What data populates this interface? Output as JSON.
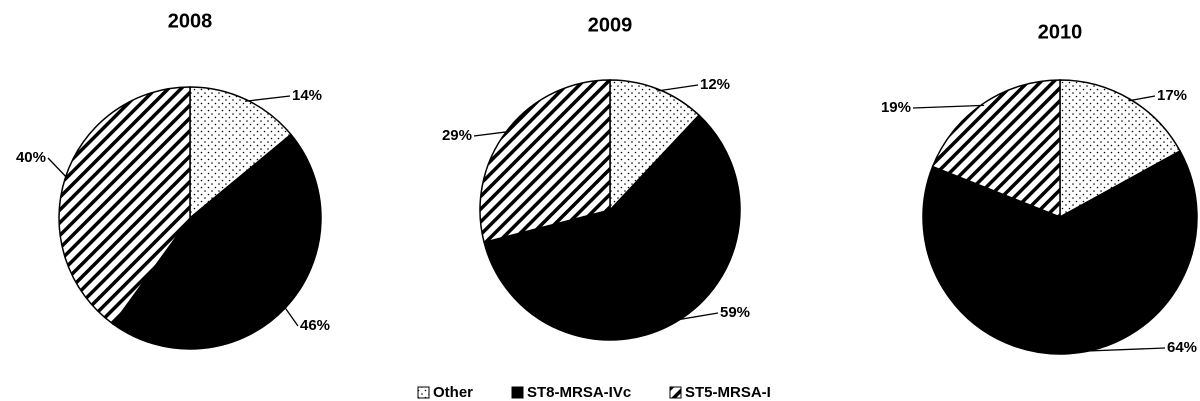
{
  "chart_data": [
    {
      "type": "pie",
      "title": "2008",
      "categories": [
        "Other",
        "ST8-MRSA-IVc",
        "ST5-MRSA-I"
      ],
      "values": [
        14,
        46,
        40
      ],
      "value_labels": [
        "14%",
        "46%",
        "40%"
      ],
      "patterns": [
        "dots",
        "solid",
        "hatch"
      ],
      "legend": "bottom"
    },
    {
      "type": "pie",
      "title": "2009",
      "categories": [
        "Other",
        "ST8-MRSA-IVc",
        "ST5-MRSA-I"
      ],
      "values": [
        12,
        59,
        29
      ],
      "value_labels": [
        "12%",
        "59%",
        "29%"
      ],
      "patterns": [
        "dots",
        "solid",
        "hatch"
      ]
    },
    {
      "type": "pie",
      "title": "2010",
      "categories": [
        "Other",
        "ST8-MRSA-IVc",
        "ST5-MRSA-I"
      ],
      "values": [
        17,
        64,
        19
      ],
      "value_labels": [
        "17%",
        "64%",
        "19%"
      ],
      "patterns": [
        "dots",
        "solid",
        "hatch"
      ]
    }
  ]
}
